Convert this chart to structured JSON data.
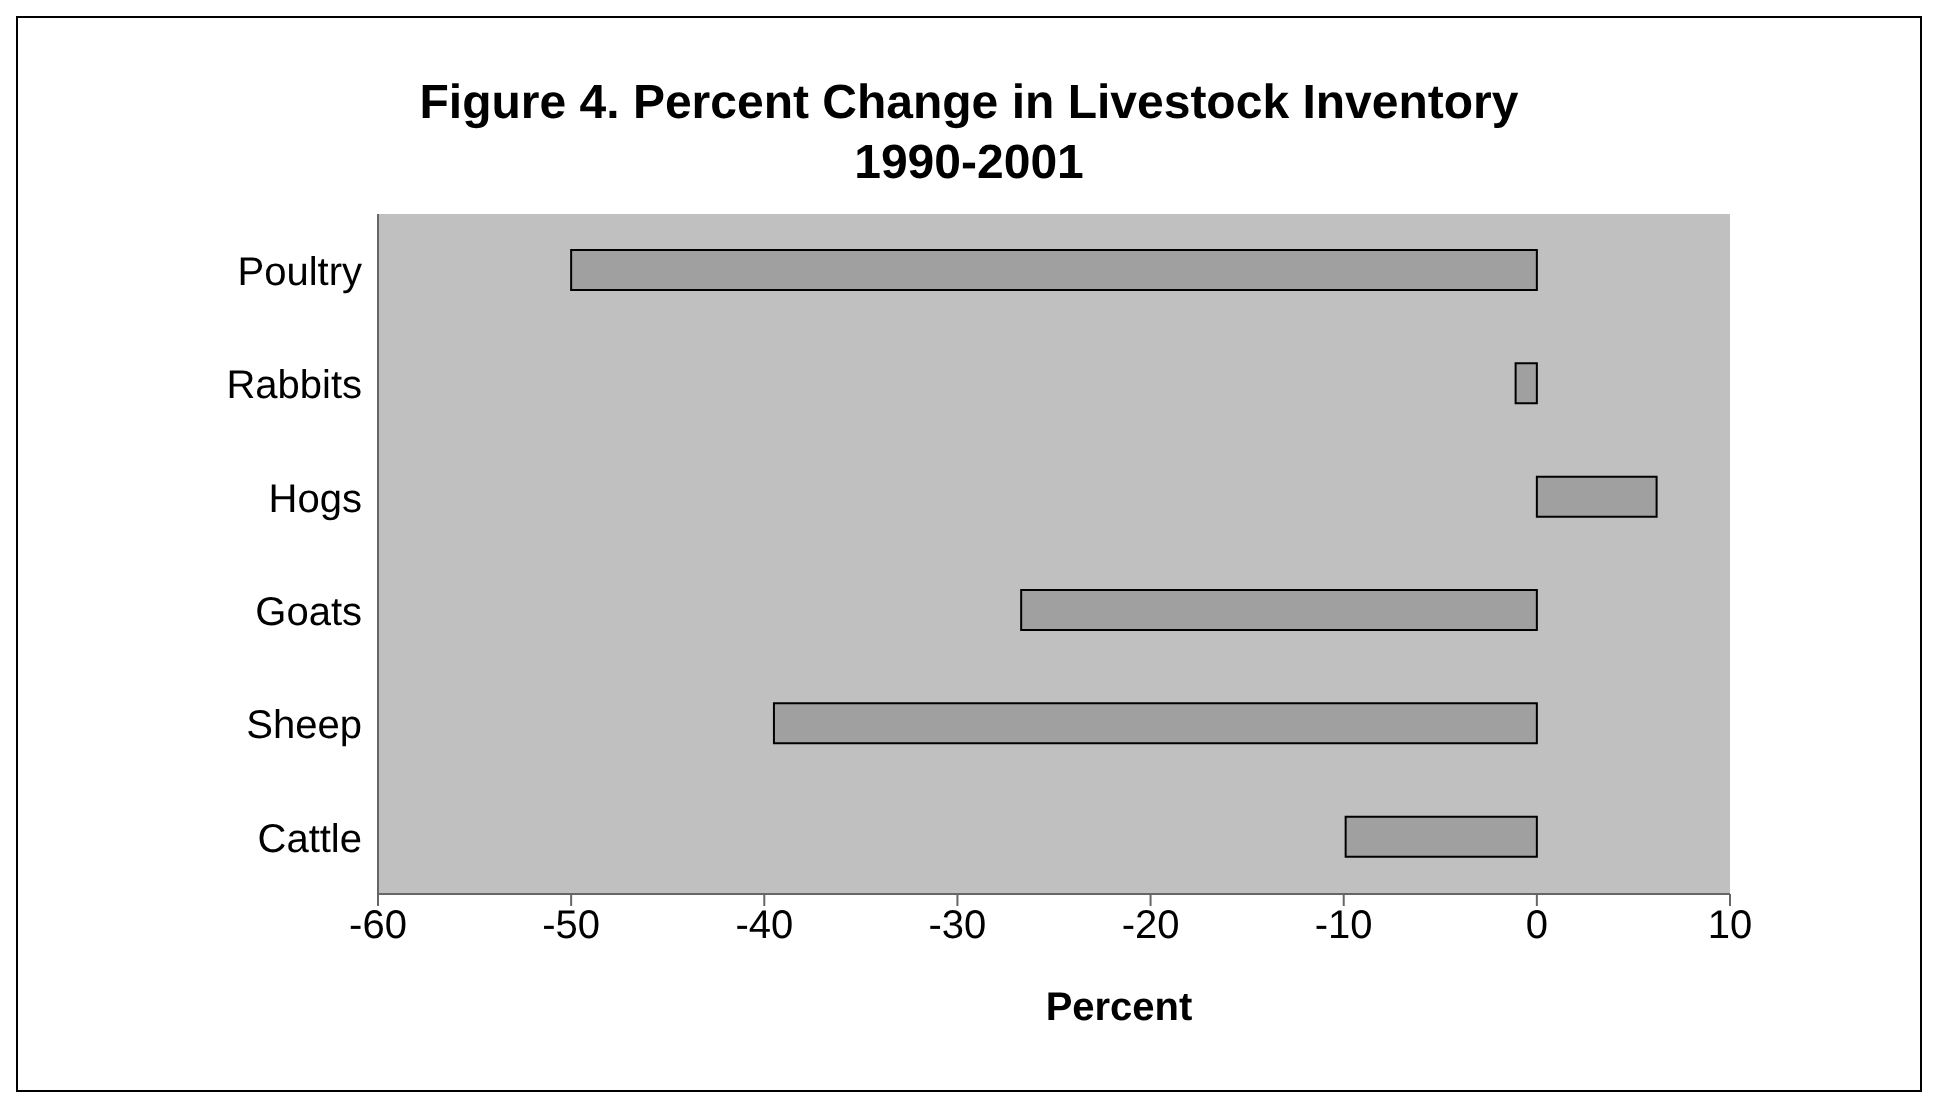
{
  "chart_data": {
    "type": "bar",
    "orientation": "horizontal",
    "title": "Figure 4.  Percent Change in Livestock Inventory 1990-2001",
    "xlabel": "Percent",
    "categories": [
      "Poultry",
      "Rabbits",
      "Hogs",
      "Goats",
      "Sheep",
      "Cattle"
    ],
    "values": [
      -50,
      -1.1,
      6.2,
      -26.7,
      -39.5,
      -9.9
    ],
    "color": "#a0a0a0",
    "xlim": [
      -60,
      10
    ],
    "xticks": [
      -60,
      -50,
      -40,
      -30,
      -20,
      -10,
      0,
      10
    ]
  }
}
